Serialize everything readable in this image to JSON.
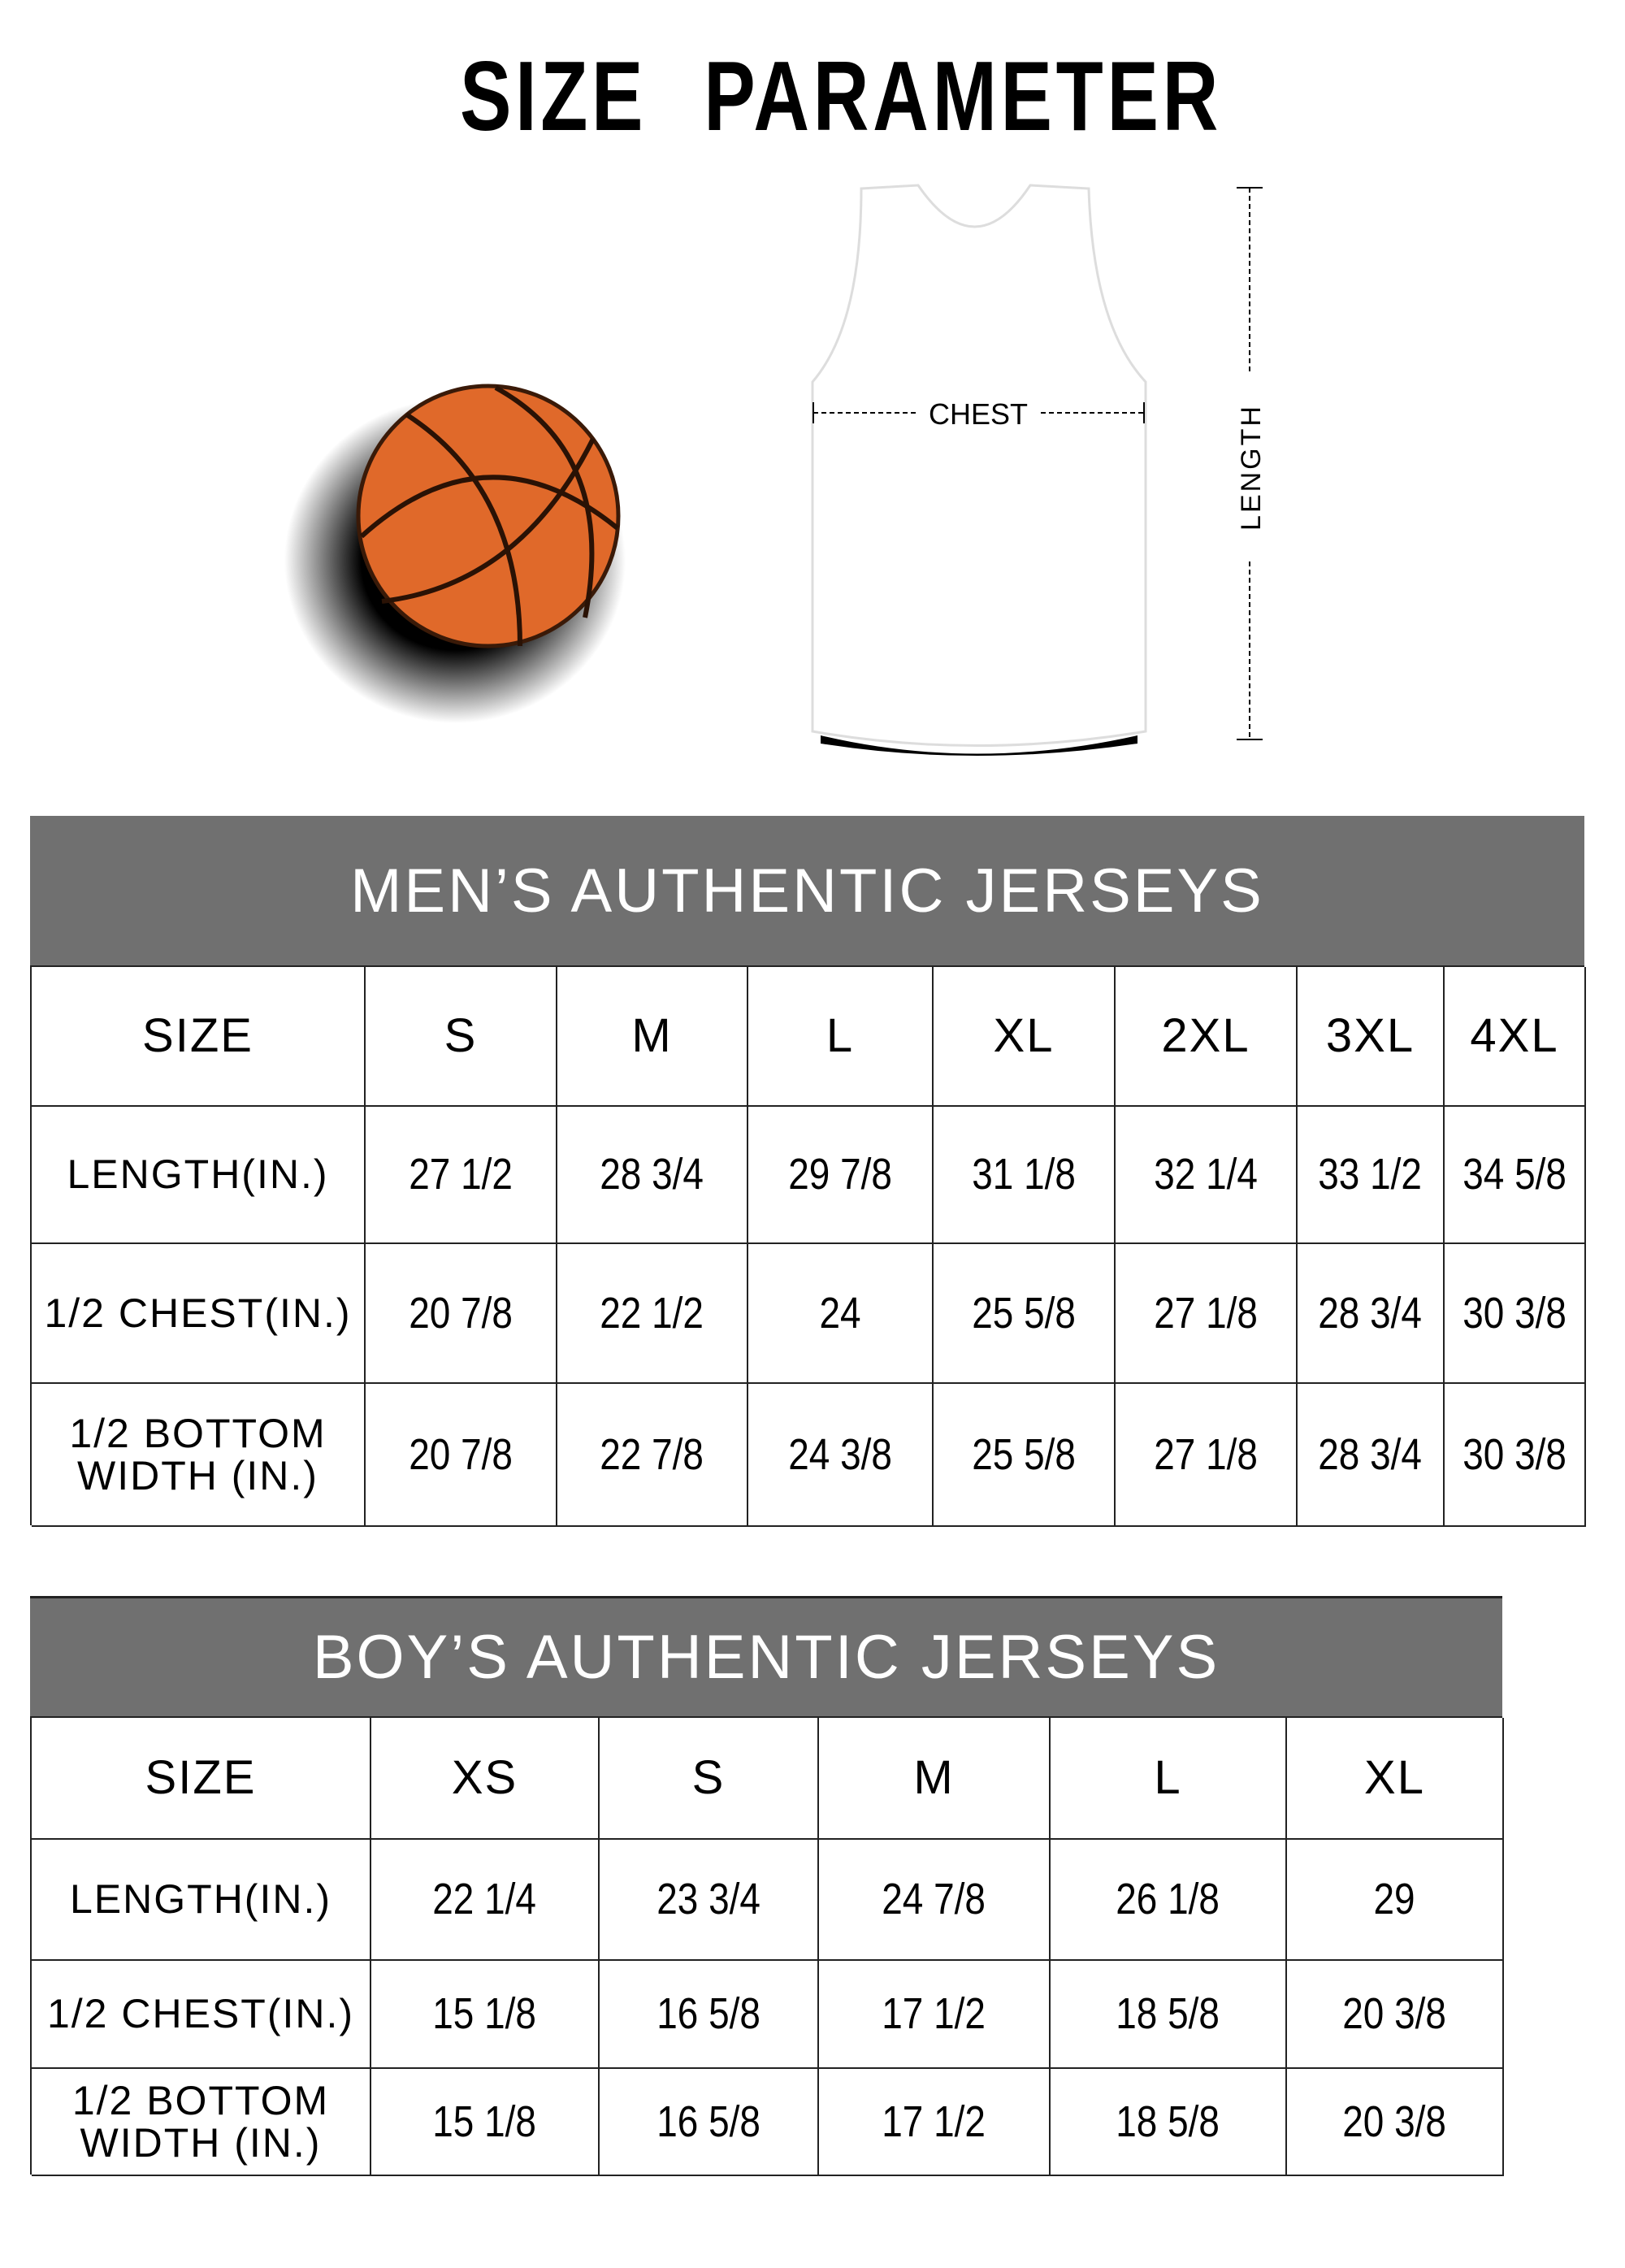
{
  "title": "SIZE PARAMETER",
  "illustration": {
    "chest_label": "CHEST",
    "length_label": "LENGTH",
    "ball_color": "#E0692A",
    "header_bg": "#707070"
  },
  "mens": {
    "title": "MEN’S AUTHENTIC JERSEYS",
    "headers": [
      "SIZE",
      "S",
      "M",
      "L",
      "XL",
      "2XL",
      "3XL",
      "4XL"
    ],
    "rows": [
      {
        "label": "LENGTH(IN.)",
        "values": [
          "27  1/2",
          "28  3/4",
          "29  7/8",
          "31  1/8",
          "32  1/4",
          "33  1/2",
          "34  5/8"
        ]
      },
      {
        "label": "1/2 CHEST(IN.)",
        "values": [
          "20  7/8",
          "22  1/2",
          "24",
          "25  5/8",
          "27  1/8",
          "28  3/4",
          "30  3/8"
        ]
      },
      {
        "label": "1/2 BOTTOM\nWIDTH  (IN.)",
        "values": [
          "20  7/8",
          "22  7/8",
          "24  3/8",
          "25  5/8",
          "27  1/8",
          "28  3/4",
          "30  3/8"
        ]
      }
    ]
  },
  "boys": {
    "title": "BOY’S AUTHENTIC JERSEYS",
    "headers": [
      "SIZE",
      "XS",
      "S",
      "M",
      "L",
      "XL"
    ],
    "rows": [
      {
        "label": "LENGTH(IN.)",
        "values": [
          "22  1/4",
          "23  3/4",
          "24  7/8",
          "26  1/8",
          "29"
        ]
      },
      {
        "label": "1/2 CHEST(IN.)",
        "values": [
          "15  1/8",
          "16  5/8",
          "17  1/2",
          "18  5/8",
          "20  3/8"
        ]
      },
      {
        "label": "1/2 BOTTOM\nWIDTH  (IN.)",
        "values": [
          "15  1/8",
          "16  5/8",
          "17  1/2",
          "18  5/8",
          "20  3/8"
        ]
      }
    ]
  }
}
